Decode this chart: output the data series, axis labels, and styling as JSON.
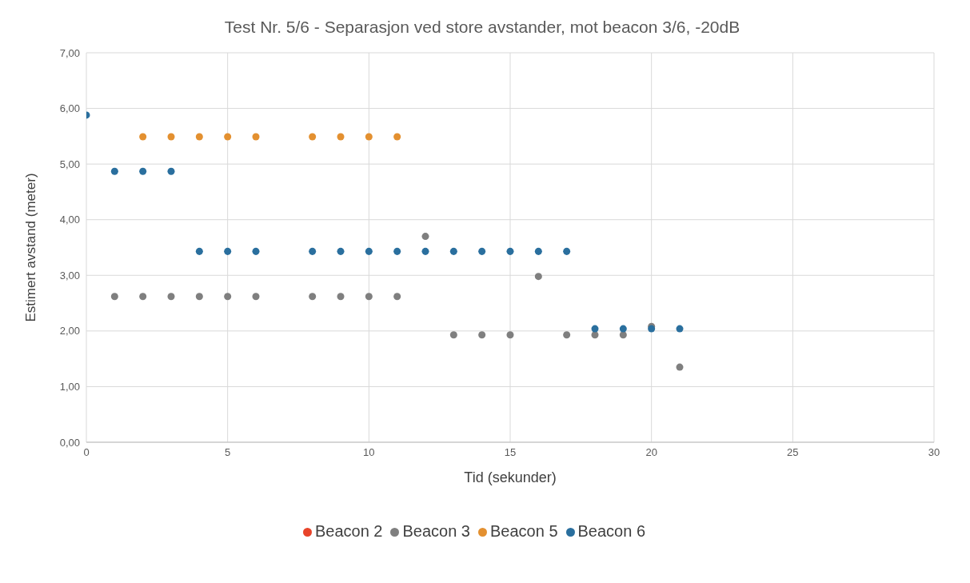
{
  "chart_data": {
    "type": "scatter",
    "title": "Test Nr. 5/6 - Separasjon ved store avstander, mot beacon 3/6, -20dB",
    "xlabel": "Tid (sekunder)",
    "ylabel": "Estimert avstand (meter)",
    "xlim": [
      0,
      30
    ],
    "xticks": [
      0,
      5,
      10,
      15,
      20,
      25,
      30
    ],
    "ylim": [
      0,
      7
    ],
    "yticks": [
      {
        "value": 0,
        "label": "0,00"
      },
      {
        "value": 1,
        "label": "1,00"
      },
      {
        "value": 2,
        "label": "2,00"
      },
      {
        "value": 3,
        "label": "3,00"
      },
      {
        "value": 4,
        "label": "4,00"
      },
      {
        "value": 5,
        "label": "5,00"
      },
      {
        "value": 6,
        "label": "6,00"
      },
      {
        "value": 7,
        "label": "7,00"
      }
    ],
    "grid": true,
    "legend": "bottom",
    "marker": "circle",
    "series": [
      {
        "name": "Beacon 2",
        "color": "#e8442a"
      },
      {
        "name": "Beacon 3",
        "color": "#7f7f7f",
        "x": [
          1,
          2,
          3,
          4,
          5,
          6,
          8,
          9,
          10,
          11,
          12,
          13,
          14,
          15,
          16,
          17,
          18,
          19,
          20,
          21
        ],
        "values": [
          2.62,
          2.62,
          2.62,
          2.62,
          2.62,
          2.62,
          2.62,
          2.62,
          2.62,
          2.62,
          3.7,
          1.93,
          1.93,
          1.93,
          2.98,
          1.93,
          1.93,
          1.93,
          2.08,
          1.35
        ]
      },
      {
        "name": "Beacon 5",
        "color": "#e39030",
        "x": [
          2,
          3,
          4,
          5,
          6,
          8,
          9,
          10,
          11
        ],
        "values": [
          5.49,
          5.49,
          5.49,
          5.49,
          5.49,
          5.49,
          5.49,
          5.49,
          5.49
        ]
      },
      {
        "name": "Beacon 6",
        "color": "#2a6f9e",
        "x": [
          0,
          1,
          2,
          3,
          4,
          5,
          6,
          8,
          9,
          10,
          11,
          12,
          13,
          14,
          15,
          16,
          17,
          18,
          19,
          20,
          21
        ],
        "values": [
          5.88,
          4.87,
          4.87,
          4.87,
          3.43,
          3.43,
          3.43,
          3.43,
          3.43,
          3.43,
          3.43,
          3.43,
          3.43,
          3.43,
          3.43,
          3.43,
          3.43,
          2.04,
          2.04,
          2.04,
          2.04
        ]
      }
    ]
  }
}
